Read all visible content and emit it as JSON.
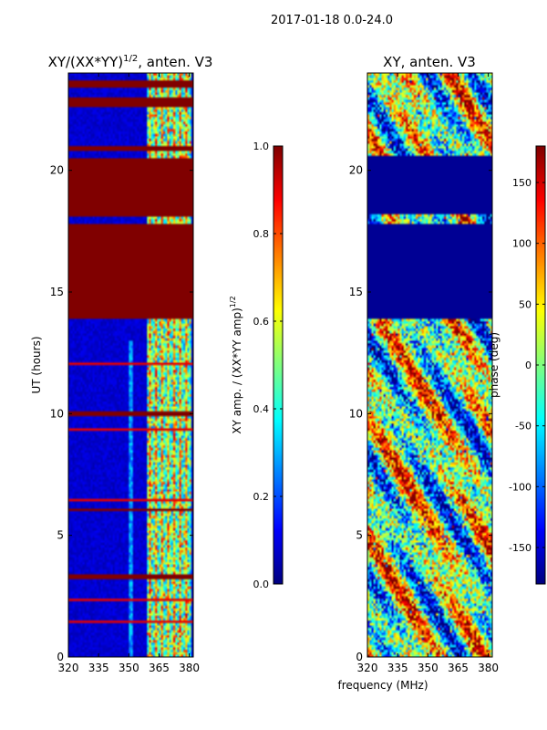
{
  "figure": {
    "suptitle": "2017-01-18 0.0-24.0",
    "xlabel": "frequency (MHz)"
  },
  "chart_data": [
    {
      "type": "heatmap",
      "title": "XY/(XX*YY)",
      "title_exponent": "1/2",
      "title_suffix": ", anten. V3",
      "xlabel": "",
      "ylabel": "UT (hours)",
      "xlim": [
        320,
        382
      ],
      "ylim": [
        0,
        24
      ],
      "xticks": [
        "320",
        "335",
        "350",
        "365",
        "380"
      ],
      "xtick_values": [
        320,
        335,
        350,
        365,
        380
      ],
      "yticks": [
        "0",
        "5",
        "10",
        "15",
        "20"
      ],
      "ytick_values": [
        0,
        5,
        10,
        15,
        20
      ],
      "colormap": "jet",
      "clim": [
        0.0,
        1.0
      ],
      "colorbar_label": "XY amp. / (XX*YY amp)",
      "colorbar_exponent": "1/2",
      "colorbar_ticks": [
        "0.0",
        "0.2",
        "0.4",
        "0.6",
        "0.8",
        "1.0"
      ],
      "colorbar_tick_values": [
        0.0,
        0.2,
        0.4,
        0.6,
        0.8,
        1.0
      ],
      "saturated_bands_hours": [
        [
          13.9,
          17.8
        ],
        [
          18.1,
          20.5
        ],
        [
          20.8,
          21.0
        ],
        [
          22.6,
          23.0
        ],
        [
          23.4,
          23.7
        ],
        [
          9.95,
          10.1
        ],
        [
          5.95,
          6.1
        ],
        [
          3.15,
          3.35
        ]
      ],
      "background_level": 0.08,
      "active_channel_range_mhz": [
        359,
        381
      ]
    },
    {
      "type": "heatmap",
      "title": "XY, anten. V3",
      "xlabel": "frequency (MHz)",
      "ylabel": "",
      "xlim": [
        320,
        382
      ],
      "ylim": [
        0,
        24
      ],
      "xticks": [
        "320",
        "335",
        "350",
        "365",
        "380"
      ],
      "xtick_values": [
        320,
        335,
        350,
        365,
        380
      ],
      "yticks": [
        "0",
        "5",
        "10",
        "15",
        "20"
      ],
      "ytick_values": [
        0,
        5,
        10,
        15,
        20
      ],
      "colormap": "jet",
      "clim": [
        -180,
        180
      ],
      "colorbar_label": "phase (deg)",
      "colorbar_ticks": [
        "-150",
        "-100",
        "-50",
        "0",
        "50",
        "100",
        "150"
      ],
      "colorbar_tick_values": [
        -150,
        -100,
        -50,
        0,
        50,
        100,
        150
      ],
      "flagged_bands_hours": [
        [
          13.9,
          17.8
        ],
        [
          18.2,
          20.6
        ]
      ],
      "flag_value": -180
    }
  ]
}
